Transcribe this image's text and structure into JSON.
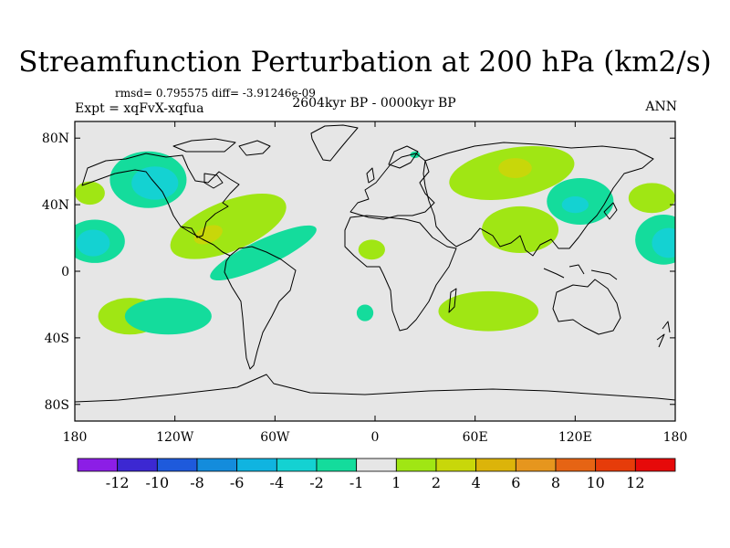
{
  "chart_data": {
    "type": "heatmap",
    "title": "Streamfunction Perturbation at 200 hPa (km2/s)",
    "stats_line": "rmsd= 0.795575 diff= -3.91246e-09",
    "subtitle": "2604kyr BP - 0000kyr BP",
    "experiment": "Expt = xqFvX-xqfua",
    "season": "ANN",
    "projection": "cylindrical equidistant",
    "xlim": [
      -180,
      180
    ],
    "ylim": [
      -90,
      90
    ],
    "x_ticks": [
      {
        "value": -180,
        "label": "180"
      },
      {
        "value": -120,
        "label": "120W"
      },
      {
        "value": -60,
        "label": "60W"
      },
      {
        "value": 0,
        "label": "0"
      },
      {
        "value": 60,
        "label": "60E"
      },
      {
        "value": 120,
        "label": "120E"
      },
      {
        "value": 180,
        "label": "180"
      }
    ],
    "y_ticks": [
      {
        "value": 80,
        "label": "80N"
      },
      {
        "value": 40,
        "label": "40N"
      },
      {
        "value": 0,
        "label": "0"
      },
      {
        "value": -40,
        "label": "40S"
      },
      {
        "value": -80,
        "label": "80S"
      }
    ],
    "colorbar": {
      "colors": [
        "#8c1ee6",
        "#3c28d2",
        "#1e5adc",
        "#148cdc",
        "#10b4e0",
        "#14d2d2",
        "#14dc9c",
        "#e6e6e6",
        "#a0e614",
        "#c8d70a",
        "#dcb40a",
        "#e6961e",
        "#e66414",
        "#e63c0a",
        "#e60a0a"
      ],
      "labels": [
        "-12",
        "-10",
        "-8",
        "-6",
        "-4",
        "-2",
        "-1",
        "1",
        "2",
        "4",
        "6",
        "8",
        "10",
        "12"
      ]
    },
    "anomalies": [
      {
        "lon": -136,
        "lat": 55,
        "rx": 23,
        "ry": 17,
        "level": -2
      },
      {
        "lon": -132,
        "lat": 53,
        "rx": 14,
        "ry": 10,
        "level": -4
      },
      {
        "lon": -171,
        "lat": 47,
        "rx": 9,
        "ry": 7,
        "level": 2
      },
      {
        "lon": -168,
        "lat": 18,
        "rx": 18,
        "ry": 13,
        "level": -2
      },
      {
        "lon": -169,
        "lat": 17,
        "rx": 10,
        "ry": 8,
        "level": -4
      },
      {
        "lon": -88,
        "lat": 27,
        "rx": 37,
        "ry": 15,
        "level": 2,
        "rotate": -22
      },
      {
        "lon": -100,
        "lat": 22,
        "rx": 9,
        "ry": 5,
        "level": 4,
        "rotate": -22
      },
      {
        "lon": -67,
        "lat": 11,
        "rx": 35,
        "ry": 8,
        "level": -2,
        "rotate": -25
      },
      {
        "lon": -147,
        "lat": -27,
        "rx": 19,
        "ry": 11,
        "level": 2
      },
      {
        "lon": -124,
        "lat": -27,
        "rx": 26,
        "ry": 11,
        "level": -2
      },
      {
        "lon": -6,
        "lat": -25,
        "rx": 5,
        "ry": 5,
        "level": -2
      },
      {
        "lon": -2,
        "lat": 13,
        "rx": 8,
        "ry": 6,
        "level": 2
      },
      {
        "lon": 82,
        "lat": 59,
        "rx": 38,
        "ry": 15,
        "level": 2,
        "rotate": -10
      },
      {
        "lon": 84,
        "lat": 62,
        "rx": 10,
        "ry": 6,
        "level": 4
      },
      {
        "lon": 87,
        "lat": 25,
        "rx": 23,
        "ry": 14,
        "level": 2
      },
      {
        "lon": 123,
        "lat": 42,
        "rx": 20,
        "ry": 14,
        "level": -2
      },
      {
        "lon": 120,
        "lat": 40,
        "rx": 8,
        "ry": 5,
        "level": -4
      },
      {
        "lon": 166,
        "lat": 44,
        "rx": 14,
        "ry": 9,
        "level": 2
      },
      {
        "lon": 173,
        "lat": 19,
        "rx": 17,
        "ry": 15,
        "level": -2
      },
      {
        "lon": 176,
        "lat": 17,
        "rx": 10,
        "ry": 9,
        "level": -4
      },
      {
        "lon": 68,
        "lat": -24,
        "rx": 30,
        "ry": 12,
        "level": 2
      },
      {
        "lon": 24,
        "lat": 70,
        "rx": 3,
        "ry": 2,
        "level": -2
      }
    ]
  }
}
